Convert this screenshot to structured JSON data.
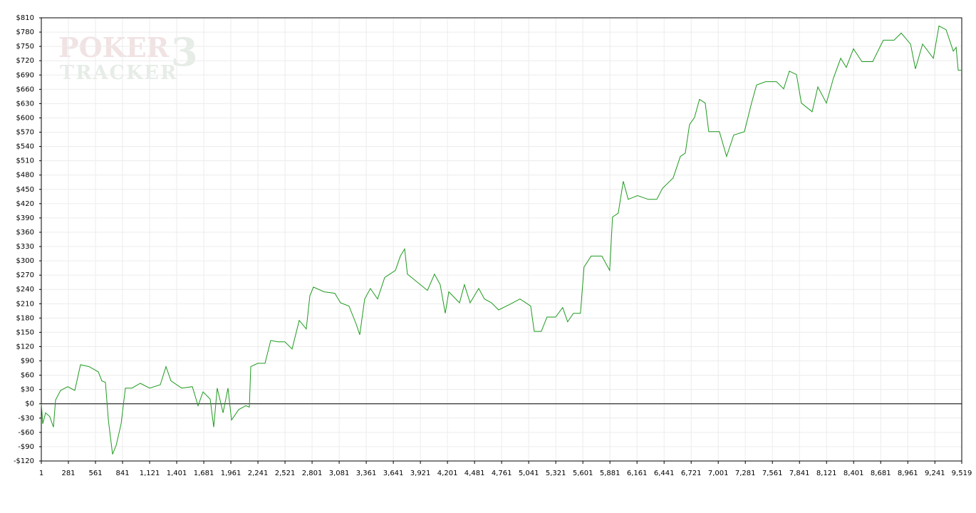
{
  "chart_data": {
    "type": "line",
    "watermark": {
      "top": "POKER",
      "badge": "3",
      "bottom": "TRACKER"
    },
    "color": "#1f9a1f",
    "grid": true,
    "x": [
      1,
      16,
      45,
      89,
      126,
      148,
      200,
      274,
      347,
      406,
      495,
      590,
      627,
      664,
      694,
      738,
      775,
      826,
      870,
      937,
      1025,
      1121,
      1231,
      1290,
      1342,
      1452,
      1563,
      1622,
      1673,
      1747,
      1784,
      1820,
      1880,
      1931,
      1968,
      2042,
      2115,
      2152,
      2167,
      2240,
      2314,
      2373,
      2447,
      2520,
      2594,
      2668,
      2741,
      2778,
      2815,
      2926,
      3036,
      3095,
      3183,
      3257,
      3294,
      3345,
      3404,
      3478,
      3552,
      3662,
      3714,
      3758,
      3787,
      3920,
      3994,
      4067,
      4126,
      4178,
      4215,
      4325,
      4376,
      4435,
      4524,
      4583,
      4656,
      4730,
      4840,
      4951,
      5061,
      5098,
      5171,
      5230,
      5319,
      5392,
      5444,
      5503,
      5576,
      5613,
      5687,
      5797,
      5878,
      5908,
      5967,
      6019,
      6070,
      6166,
      6277,
      6365,
      6424,
      6535,
      6609,
      6660,
      6704,
      6756,
      6807,
      6866,
      6903,
      7013,
      7087,
      7161,
      7271,
      7345,
      7397,
      7492,
      7603,
      7677,
      7736,
      7810,
      7861,
      7972,
      8031,
      8119,
      8193,
      8267,
      8325,
      8399,
      8487,
      8598,
      8708,
      8819,
      8893,
      8989,
      9040,
      9114,
      9225,
      9283,
      9357,
      9431,
      9461,
      9482,
      9519
    ],
    "values": [
      0,
      -42,
      -19,
      -27,
      -49,
      8,
      28,
      36,
      28,
      82,
      78,
      67,
      48,
      45,
      -34,
      -106,
      -87,
      -42,
      33,
      33,
      43,
      33,
      40,
      78,
      48,
      33,
      36,
      -4,
      25,
      10,
      -49,
      33,
      -19,
      33,
      -34,
      -12,
      -4,
      -7,
      78,
      85,
      85,
      133,
      130,
      130,
      115,
      175,
      157,
      227,
      245,
      235,
      232,
      212,
      205,
      167,
      145,
      220,
      242,
      220,
      265,
      280,
      310,
      325,
      272,
      250,
      238,
      272,
      250,
      190,
      235,
      212,
      250,
      212,
      242,
      220,
      212,
      197,
      208,
      220,
      205,
      152,
      152,
      182,
      182,
      202,
      172,
      190,
      190,
      287,
      310,
      310,
      280,
      392,
      400,
      467,
      429,
      437,
      429,
      429,
      452,
      474,
      519,
      526,
      586,
      601,
      639,
      631,
      571,
      571,
      519,
      564,
      571,
      631,
      669,
      676,
      676,
      661,
      698,
      691,
      631,
      613,
      665,
      631,
      684,
      725,
      706,
      745,
      718,
      718,
      763,
      763,
      778,
      755,
      703,
      755,
      725,
      793,
      785,
      740,
      748,
      700,
      700
    ],
    "xlim": [
      1,
      9519
    ],
    "ylim": [
      -120,
      810
    ],
    "xticks": [
      1,
      281,
      561,
      841,
      {
        "value": 1121,
        "label": "1,121"
      },
      {
        "value": 1401,
        "label": "1,401"
      },
      {
        "value": 1681,
        "label": "1,681"
      },
      {
        "value": 1961,
        "label": "1,961"
      },
      {
        "value": 2241,
        "label": "2,241"
      },
      {
        "value": 2521,
        "label": "2,521"
      },
      {
        "value": 2801,
        "label": "2,801"
      },
      {
        "value": 3081,
        "label": "3,081"
      },
      {
        "value": 3361,
        "label": "3,361"
      },
      {
        "value": 3641,
        "label": "3,641"
      },
      {
        "value": 3921,
        "label": "3,921"
      },
      {
        "value": 4201,
        "label": "4,201"
      },
      {
        "value": 4481,
        "label": "4,481"
      },
      {
        "value": 4761,
        "label": "4,761"
      },
      {
        "value": 5041,
        "label": "5,041"
      },
      {
        "value": 5321,
        "label": "5,321"
      },
      {
        "value": 5601,
        "label": "5,601"
      },
      {
        "value": 5881,
        "label": "5,881"
      },
      {
        "value": 6161,
        "label": "6,161"
      },
      {
        "value": 6441,
        "label": "6,441"
      },
      {
        "value": 6721,
        "label": "6,721"
      },
      {
        "value": 7001,
        "label": "7,001"
      },
      {
        "value": 7281,
        "label": "7,281"
      },
      {
        "value": 7561,
        "label": "7,561"
      },
      {
        "value": 7841,
        "label": "7,841"
      },
      {
        "value": 8121,
        "label": "8,121"
      },
      {
        "value": 8401,
        "label": "8,401"
      },
      {
        "value": 8681,
        "label": "8,681"
      },
      {
        "value": 8961,
        "label": "8,961"
      },
      {
        "value": 9241,
        "label": "9,241"
      },
      {
        "value": 9519,
        "label": "9,519"
      }
    ],
    "yticks": [
      {
        "value": -120,
        "label": "-$120"
      },
      {
        "value": -90,
        "label": "-$90"
      },
      {
        "value": -60,
        "label": "-$60"
      },
      {
        "value": -30,
        "label": "-$30"
      },
      {
        "value": 0,
        "label": "$0"
      },
      {
        "value": 30,
        "label": "$30"
      },
      {
        "value": 60,
        "label": "$60"
      },
      {
        "value": 90,
        "label": "$90"
      },
      {
        "value": 120,
        "label": "$120"
      },
      {
        "value": 150,
        "label": "$150"
      },
      {
        "value": 180,
        "label": "$180"
      },
      {
        "value": 210,
        "label": "$210"
      },
      {
        "value": 240,
        "label": "$240"
      },
      {
        "value": 270,
        "label": "$270"
      },
      {
        "value": 300,
        "label": "$300"
      },
      {
        "value": 330,
        "label": "$330"
      },
      {
        "value": 360,
        "label": "$360"
      },
      {
        "value": 390,
        "label": "$390"
      },
      {
        "value": 420,
        "label": "$420"
      },
      {
        "value": 450,
        "label": "$450"
      },
      {
        "value": 480,
        "label": "$480"
      },
      {
        "value": 510,
        "label": "$510"
      },
      {
        "value": 540,
        "label": "$540"
      },
      {
        "value": 570,
        "label": "$570"
      },
      {
        "value": 600,
        "label": "$600"
      },
      {
        "value": 630,
        "label": "$630"
      },
      {
        "value": 660,
        "label": "$660"
      },
      {
        "value": 690,
        "label": "$690"
      },
      {
        "value": 720,
        "label": "$720"
      },
      {
        "value": 750,
        "label": "$750"
      },
      {
        "value": 780,
        "label": "$780"
      },
      {
        "value": 810,
        "label": "$810"
      }
    ]
  }
}
